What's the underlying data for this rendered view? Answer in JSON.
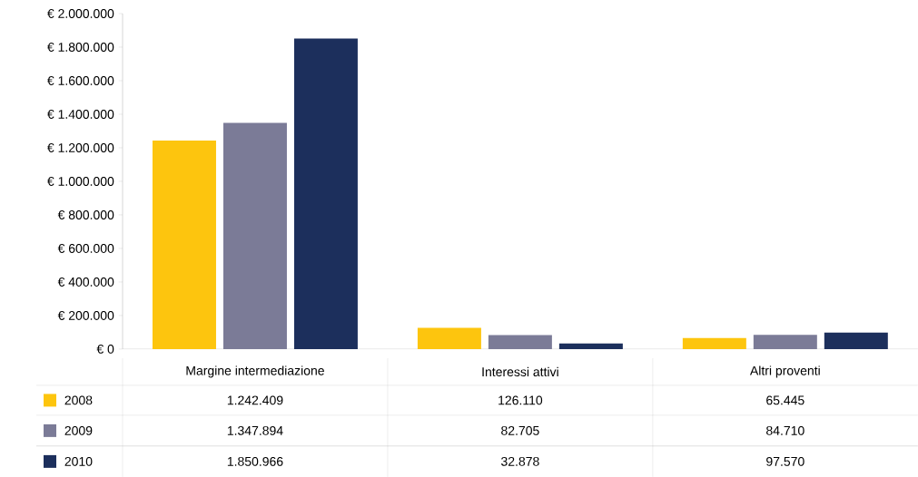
{
  "chart_data": {
    "type": "bar",
    "categories": [
      "Margine intermediazione",
      "Interessi attivi",
      "Altri proventi"
    ],
    "series": [
      {
        "name": "2008",
        "color": "#fdc50e",
        "values": [
          1242409,
          126110,
          65445
        ],
        "value_labels": [
          "1.242.409",
          "126.110",
          "65.445"
        ]
      },
      {
        "name": "2009",
        "color": "#7b7b97",
        "values": [
          1347894,
          82705,
          84710
        ],
        "value_labels": [
          "1.347.894",
          "82.705",
          "84.710"
        ]
      },
      {
        "name": "2010",
        "color": "#1c2f5c",
        "values": [
          1850966,
          32878,
          97570
        ],
        "value_labels": [
          "1.850.966",
          "32.878",
          "97.570"
        ]
      }
    ],
    "ylim": [
      0,
      2000000
    ],
    "yticks": [
      {
        "value": 0,
        "label": "€ 0"
      },
      {
        "value": 200000,
        "label": "€ 200.000"
      },
      {
        "value": 400000,
        "label": "€ 400.000"
      },
      {
        "value": 600000,
        "label": "€ 600.000"
      },
      {
        "value": 800000,
        "label": "€ 800.000"
      },
      {
        "value": 1000000,
        "label": "€ 1.000.000"
      },
      {
        "value": 1200000,
        "label": "€ 1.200.000"
      },
      {
        "value": 1400000,
        "label": "€ 1.400.000"
      },
      {
        "value": 1600000,
        "label": "€ 1.600.000"
      },
      {
        "value": 1800000,
        "label": "€ 1.800.000"
      },
      {
        "value": 2000000,
        "label": "€ 2.000.000"
      }
    ],
    "legend": "bottom",
    "grid": false
  }
}
